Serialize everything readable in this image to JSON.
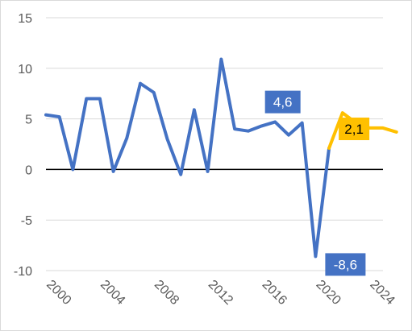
{
  "chart_data": {
    "type": "line",
    "title": "",
    "xlabel": "",
    "ylabel": "",
    "ylim": [
      -10,
      15
    ],
    "xlim": [
      2000,
      2025
    ],
    "yticks": [
      15,
      10,
      5,
      0,
      -5,
      -10
    ],
    "xticks": [
      2000,
      2004,
      2008,
      2012,
      2016,
      2020,
      2024
    ],
    "grid": true,
    "series": [
      {
        "color": "#4472C4",
        "points": [
          [
            2000,
            5.4
          ],
          [
            2001,
            5.2
          ],
          [
            2002,
            0.0
          ],
          [
            2003,
            7.0
          ],
          [
            2004,
            7.0
          ],
          [
            2005,
            -0.2
          ],
          [
            2006,
            3.1
          ],
          [
            2007,
            8.5
          ],
          [
            2008,
            7.6
          ],
          [
            2009,
            3.0
          ],
          [
            2010,
            -0.5
          ],
          [
            2011,
            5.9
          ],
          [
            2012,
            -0.2
          ],
          [
            2013,
            10.9
          ],
          [
            2014,
            4.0
          ],
          [
            2015,
            3.8
          ],
          [
            2016,
            4.3
          ],
          [
            2017,
            4.7
          ],
          [
            2018,
            3.4
          ],
          [
            2019,
            4.6
          ],
          [
            2020,
            -8.6
          ],
          [
            2021,
            2.1
          ]
        ]
      },
      {
        "color": "#FFC000",
        "points": [
          [
            2021,
            2.1
          ],
          [
            2022,
            5.6
          ],
          [
            2023,
            4.6
          ],
          [
            2024,
            4.1
          ],
          [
            2025,
            4.1
          ],
          [
            2026,
            3.7
          ]
        ]
      }
    ],
    "annotations": [
      {
        "text": "4,6",
        "x": 2019,
        "y": 4.6,
        "color": "#4472C4"
      },
      {
        "text": "-8,6",
        "x": 2020,
        "y": -8.6,
        "color": "#4472C4"
      },
      {
        "text": "2,1",
        "x": 2021,
        "y": 2.1,
        "color": "#FFC000"
      }
    ]
  }
}
